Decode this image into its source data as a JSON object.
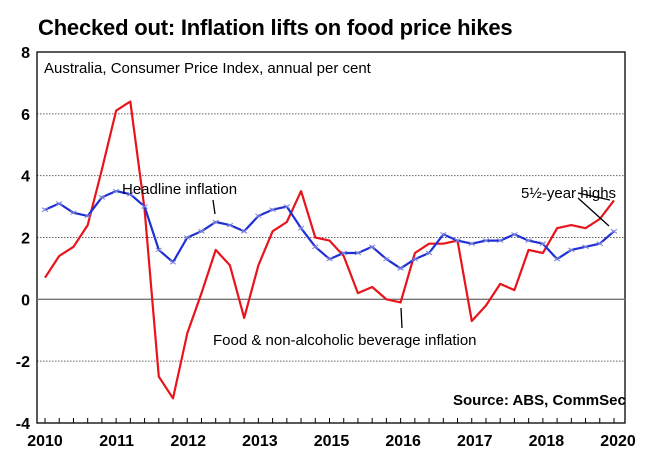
{
  "chart_data": {
    "type": "line",
    "title": "Checked out: Inflation lifts on food price hikes",
    "subtitle": "Australia, Consumer Price Index, annual per cent",
    "source": "Source: ABS, CommSec",
    "xlabel": "",
    "ylabel": "",
    "ylim": [
      -4,
      8
    ],
    "yticks": [
      -4,
      -2,
      0,
      2,
      4,
      6,
      8
    ],
    "ytick_labels": [
      "-4",
      "-2",
      "0",
      "2",
      "4",
      "6",
      "8"
    ],
    "xtick_labels": [
      "2010",
      "2011",
      "2012",
      "2013",
      "2015",
      "2016",
      "2017",
      "2018",
      "2020"
    ],
    "x_points_count": 41,
    "x_period": "quarterly",
    "grid": "horizontal dotted",
    "series": [
      {
        "name": "Headline inflation",
        "color": "#1f2fd6",
        "marker": "x",
        "values": [
          2.9,
          3.1,
          2.8,
          2.7,
          3.3,
          3.5,
          3.4,
          3.0,
          1.6,
          1.2,
          2.0,
          2.2,
          2.5,
          2.4,
          2.2,
          2.7,
          2.9,
          3.0,
          2.3,
          1.7,
          1.3,
          1.5,
          1.5,
          1.7,
          1.3,
          1.0,
          1.3,
          1.5,
          2.1,
          1.9,
          1.8,
          1.9,
          1.9,
          2.1,
          1.9,
          1.8,
          1.3,
          1.6,
          1.7,
          1.8,
          2.2
        ]
      },
      {
        "name": "Food & non-alcoholic beverage inflation",
        "color": "#e8141c",
        "marker": "none",
        "values": [
          0.7,
          1.4,
          1.7,
          2.4,
          4.2,
          6.1,
          6.4,
          2.9,
          -2.5,
          -3.2,
          -1.1,
          0.2,
          1.6,
          1.1,
          -0.6,
          1.1,
          2.2,
          2.5,
          3.5,
          2.0,
          1.9,
          1.4,
          0.2,
          0.4,
          0.0,
          -0.1,
          1.5,
          1.8,
          1.8,
          1.9,
          -0.7,
          -0.2,
          0.5,
          0.3,
          1.6,
          1.5,
          2.3,
          2.4,
          2.3,
          2.6,
          3.2
        ]
      }
    ],
    "annotations": [
      {
        "text": "Headline inflation",
        "series": "Headline inflation",
        "points_to_index": 12
      },
      {
        "text": "Food & non-alcoholic beverage inflation",
        "series": "Food & non-alcoholic beverage inflation",
        "points_to_index": 25
      },
      {
        "text": "5½-year highs",
        "points_to_index": 40
      }
    ]
  }
}
